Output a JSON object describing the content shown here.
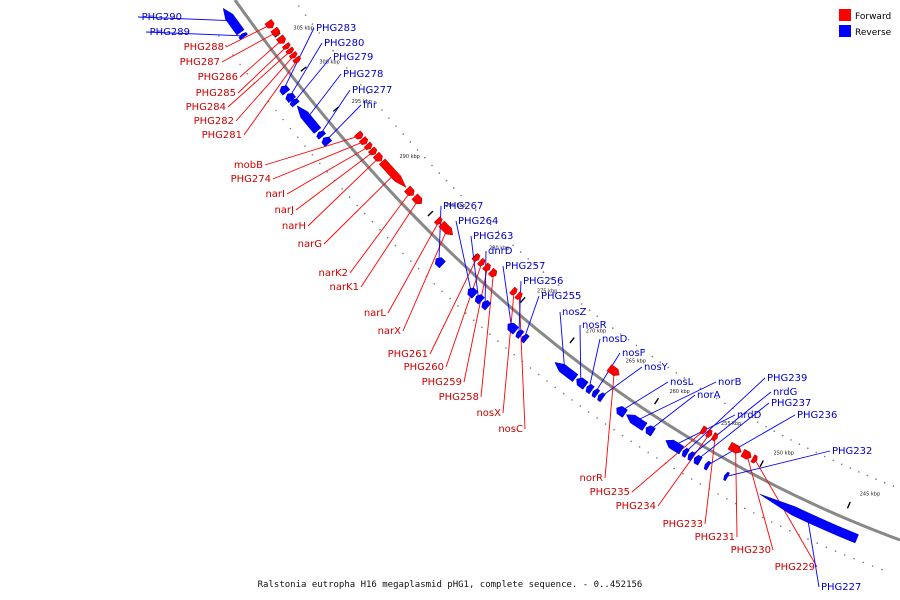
{
  "caption": "Ralstonia eutropha H16 megaplasmid pHG1, complete sequence. - 0..452156",
  "legend": [
    {
      "label": "Forward",
      "color": "#ff0000"
    },
    {
      "label": "Reverse",
      "color": "#0000ff"
    }
  ],
  "colors": {
    "forward": "#ff0000",
    "reverse": "#0000ff",
    "forward_label": "#cc0000",
    "reverse_label": "#0000cc",
    "backbone": "#888888"
  },
  "ticks": [
    "305 kbp",
    "300 kbp",
    "295 kbp",
    "290 kbp",
    "285 kbp",
    "280 kbp",
    "275 kbp",
    "270 kbp",
    "265 kbp",
    "260 kbp",
    "255 kbp",
    "250 kbp",
    "245 kbp"
  ],
  "forward_genes": [
    "PHG288",
    "PHG287",
    "PHG286",
    "PHG285",
    "PHG284",
    "PHG282",
    "PHG281",
    "mobB",
    "PHG274",
    "narI",
    "narJ",
    "narH",
    "narG",
    "narK2",
    "narK1",
    "narL",
    "narX",
    "PHG261",
    "PHG260",
    "PHG259",
    "PHG258",
    "nosX",
    "nosC",
    "norR",
    "PHG235",
    "PHG234",
    "PHG233",
    "PHG231",
    "PHG230",
    "PHG229"
  ],
  "reverse_genes": [
    "PHG290",
    "PHG289",
    "PHG283",
    "PHG280",
    "PHG279",
    "PHG278",
    "PHG277",
    "fnr",
    "PHG267",
    "PHG264",
    "PHG263",
    "dnrD",
    "PHG257",
    "PHG256",
    "PHG255",
    "nosZ",
    "nosR",
    "nosD",
    "nosF",
    "nosY",
    "nosL",
    "norB",
    "norA",
    "nrdD",
    "PHG239",
    "nrdG",
    "PHG237",
    "PHG236",
    "PHG232",
    "PHG227"
  ]
}
